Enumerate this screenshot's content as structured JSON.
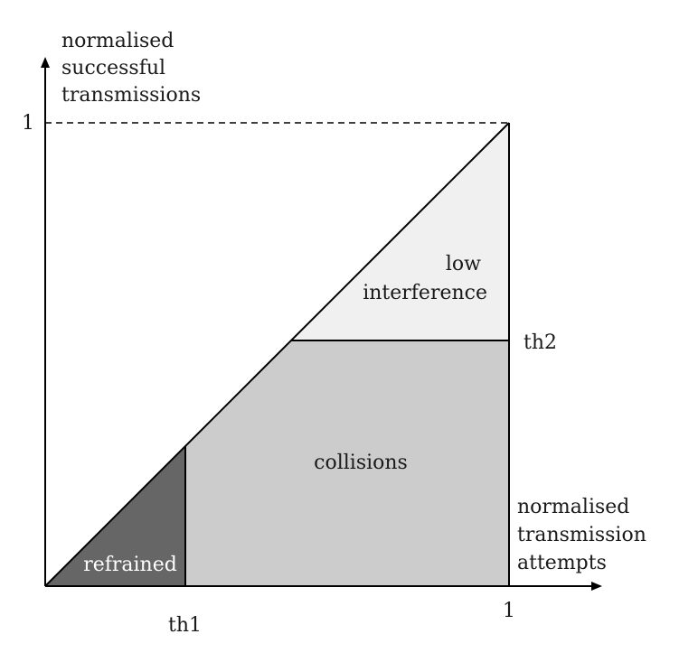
{
  "y_axis": {
    "label_lines": [
      "normalised",
      "successful",
      "transmissions"
    ],
    "tick_label": "1"
  },
  "x_axis": {
    "label_lines": [
      "normalised",
      "transmission",
      "attempts"
    ],
    "tick_label": "1"
  },
  "thresholds": {
    "th1_label": "th1",
    "th2_label": "th2"
  },
  "regions": {
    "refrained": {
      "label": "refrained",
      "color": "#666666"
    },
    "collisions": {
      "label": "collisions",
      "color": "#cccccc"
    },
    "low_interference": {
      "label_lines": [
        "low",
        "interference"
      ],
      "color": "#f0f0f0"
    }
  },
  "colors": {
    "line": "#000000",
    "text_dark": "#1a1a1a",
    "text_light": "#ffffff"
  }
}
